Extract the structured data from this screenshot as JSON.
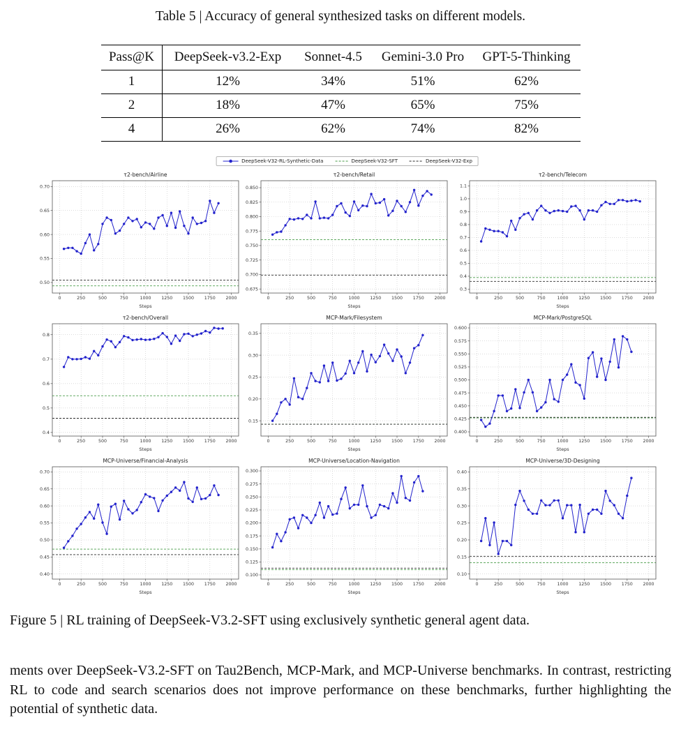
{
  "table": {
    "title": "Table 5 | Accuracy of general synthesized tasks on different models.",
    "headers": [
      "Pass@K",
      "DeepSeek-v3.2-Exp",
      "Sonnet-4.5",
      "Gemini-3.0 Pro",
      "GPT-5-Thinking"
    ],
    "rows": [
      [
        "1",
        "12%",
        "34%",
        "51%",
        "62%"
      ],
      [
        "2",
        "18%",
        "47%",
        "65%",
        "75%"
      ],
      [
        "4",
        "26%",
        "62%",
        "74%",
        "82%"
      ]
    ]
  },
  "figure": {
    "legend": [
      {
        "label": "DeepSeek-V32-RL-Synthetic-Data",
        "color": "#2222cc",
        "style": "line-marker"
      },
      {
        "label": "DeepSeek-V32-SFT",
        "color": "#4a9e4a",
        "style": "dashed"
      },
      {
        "label": "DeepSeek-V32-Exp",
        "color": "#2b2b2b",
        "style": "dashed"
      }
    ],
    "caption": "Figure 5 | RL training of DeepSeek-V3.2-SFT using exclusively synthetic general agent data."
  },
  "body_text": "ments over DeepSeek-V3.2-SFT on Tau2Bench, MCP-Mark, and MCP-Universe benchmarks. In contrast, restricting RL to code and search scenarios does not improve performance on these benchmarks, further highlighting the potential of synthetic data.",
  "chart_data": [
    {
      "type": "line",
      "title": "τ2-bench/Airline",
      "xlabel": "Steps",
      "xticks": [
        0,
        250,
        500,
        750,
        1000,
        1250,
        1500,
        1750,
        2000
      ],
      "xlim": [
        -85,
        2085
      ],
      "ylim": [
        0.478,
        0.712
      ],
      "ytick_vals": [
        0.5,
        0.55,
        0.6,
        0.65,
        0.7
      ],
      "ytick_labels": [
        "0.50",
        "0.55",
        "0.60",
        "0.65",
        "0.70"
      ],
      "series_name": "DeepSeek-V32-RL-Synthetic-Data",
      "x_start": 50,
      "x_step": 50,
      "values": [
        0.57,
        0.572,
        0.572,
        0.565,
        0.56,
        0.582,
        0.6,
        0.567,
        0.58,
        0.622,
        0.635,
        0.63,
        0.602,
        0.608,
        0.622,
        0.635,
        0.628,
        0.632,
        0.615,
        0.625,
        0.622,
        0.612,
        0.635,
        0.64,
        0.618,
        0.645,
        0.614,
        0.648,
        0.618,
        0.602,
        0.635,
        0.622,
        0.624,
        0.628,
        0.67,
        0.645,
        0.665
      ],
      "baselines": {
        "sft": 0.493,
        "exp": 0.505
      }
    },
    {
      "type": "line",
      "title": "τ2-bench/Retail",
      "xlabel": "Steps",
      "xticks": [
        0,
        250,
        500,
        750,
        1000,
        1250,
        1500,
        1750,
        2000
      ],
      "xlim": [
        -85,
        2085
      ],
      "ylim": [
        0.668,
        0.862
      ],
      "ytick_vals": [
        0.675,
        0.7,
        0.725,
        0.75,
        0.775,
        0.8,
        0.825,
        0.85
      ],
      "ytick_labels": [
        "0.675",
        "0.700",
        "0.725",
        "0.750",
        "0.775",
        "0.800",
        "0.825",
        "0.850"
      ],
      "series_name": "DeepSeek-V32-RL-Synthetic-Data",
      "x_start": 50,
      "x_step": 50,
      "values": [
        0.769,
        0.773,
        0.774,
        0.785,
        0.796,
        0.795,
        0.797,
        0.796,
        0.803,
        0.797,
        0.826,
        0.797,
        0.798,
        0.797,
        0.803,
        0.818,
        0.823,
        0.807,
        0.801,
        0.826,
        0.811,
        0.819,
        0.818,
        0.839,
        0.823,
        0.824,
        0.83,
        0.802,
        0.81,
        0.827,
        0.818,
        0.808,
        0.825,
        0.846,
        0.819,
        0.836,
        0.844,
        0.838
      ],
      "baselines": {
        "sft": 0.76,
        "exp": 0.699
      }
    },
    {
      "type": "line",
      "title": "τ2-bench/Telecom",
      "xlabel": "Steps",
      "xticks": [
        0,
        250,
        500,
        750,
        1000,
        1250,
        1500,
        1750,
        2000
      ],
      "xlim": [
        -85,
        2085
      ],
      "ylim": [
        0.27,
        1.14
      ],
      "ytick_vals": [
        0.3,
        0.4,
        0.5,
        0.6,
        0.7,
        0.8,
        0.9,
        1.0,
        1.1
      ],
      "ytick_labels": [
        "0.3",
        "0.4",
        "0.5",
        "0.6",
        "0.7",
        "0.8",
        "0.9",
        "1.0",
        "1.1"
      ],
      "series_name": "DeepSeek-V32-RL-Synthetic-Data",
      "x_start": 50,
      "x_step": 50,
      "values": [
        0.67,
        0.77,
        0.76,
        0.75,
        0.75,
        0.74,
        0.71,
        0.83,
        0.76,
        0.85,
        0.88,
        0.89,
        0.84,
        0.91,
        0.945,
        0.91,
        0.89,
        0.905,
        0.91,
        0.905,
        0.9,
        0.94,
        0.945,
        0.91,
        0.84,
        0.91,
        0.91,
        0.9,
        0.95,
        0.975,
        0.96,
        0.96,
        0.99,
        0.99,
        0.98,
        0.985,
        0.99,
        0.98
      ],
      "baselines": {
        "sft": 0.39,
        "exp": 0.36
      }
    },
    {
      "type": "line",
      "title": "τ2-bench/Overall",
      "xlabel": "Steps",
      "xticks": [
        0,
        250,
        500,
        750,
        1000,
        1250,
        1500,
        1750,
        2000
      ],
      "xlim": [
        -85,
        2085
      ],
      "ylim": [
        0.385,
        0.845
      ],
      "ytick_vals": [
        0.4,
        0.5,
        0.6,
        0.7,
        0.8
      ],
      "ytick_labels": [
        "0.4",
        "0.5",
        "0.6",
        "0.7",
        "0.8"
      ],
      "series_name": "DeepSeek-V32-RL-Synthetic-Data",
      "x_start": 50,
      "x_step": 50,
      "values": [
        0.668,
        0.708,
        0.7,
        0.7,
        0.701,
        0.708,
        0.702,
        0.733,
        0.716,
        0.752,
        0.78,
        0.773,
        0.749,
        0.77,
        0.794,
        0.789,
        0.778,
        0.78,
        0.782,
        0.779,
        0.78,
        0.783,
        0.79,
        0.806,
        0.791,
        0.763,
        0.796,
        0.775,
        0.802,
        0.804,
        0.794,
        0.8,
        0.805,
        0.815,
        0.809,
        0.828,
        0.825,
        0.826
      ],
      "baselines": {
        "sft": 0.55,
        "exp": 0.458
      }
    },
    {
      "type": "line",
      "title": "MCP-Mark/Filesystem",
      "xlabel": "Steps",
      "xticks": [
        0,
        250,
        500,
        750,
        1000,
        1250,
        1500,
        1750,
        2000
      ],
      "xlim": [
        -85,
        2085
      ],
      "ylim": [
        0.115,
        0.372
      ],
      "ytick_vals": [
        0.15,
        0.2,
        0.25,
        0.3,
        0.35
      ],
      "ytick_labels": [
        "0.15",
        "0.20",
        "0.25",
        "0.30",
        "0.35"
      ],
      "series_name": "DeepSeek-V32-RL-Synthetic-Data",
      "x_start": 50,
      "x_step": 50,
      "values": [
        0.15,
        0.166,
        0.192,
        0.2,
        0.187,
        0.247,
        0.204,
        0.2,
        0.225,
        0.259,
        0.241,
        0.238,
        0.276,
        0.241,
        0.283,
        0.242,
        0.246,
        0.258,
        0.287,
        0.259,
        0.283,
        0.309,
        0.263,
        0.301,
        0.284,
        0.298,
        0.324,
        0.304,
        0.287,
        0.313,
        0.297,
        0.259,
        0.283,
        0.316,
        0.323,
        0.346
      ],
      "baselines": {
        "sft": 0.142,
        "exp": 0.142
      }
    },
    {
      "type": "line",
      "title": "MCP-Mark/PostgreSQL",
      "xlabel": "Steps",
      "xticks": [
        0,
        250,
        500,
        750,
        1000,
        1250,
        1500,
        1750,
        2000
      ],
      "xlim": [
        -85,
        2085
      ],
      "ylim": [
        0.392,
        0.608
      ],
      "ytick_vals": [
        0.4,
        0.425,
        0.45,
        0.475,
        0.5,
        0.525,
        0.55,
        0.575,
        0.6
      ],
      "ytick_labels": [
        "0.400",
        "0.425",
        "0.450",
        "0.475",
        "0.500",
        "0.525",
        "0.550",
        "0.575",
        "0.600"
      ],
      "series_name": "DeepSeek-V32-RL-Synthetic-Data",
      "x_start": 50,
      "x_step": 50,
      "values": [
        0.423,
        0.41,
        0.416,
        0.44,
        0.47,
        0.47,
        0.44,
        0.445,
        0.482,
        0.446,
        0.476,
        0.5,
        0.476,
        0.44,
        0.447,
        0.457,
        0.5,
        0.463,
        0.458,
        0.5,
        0.51,
        0.53,
        0.495,
        0.49,
        0.464,
        0.542,
        0.553,
        0.506,
        0.541,
        0.5,
        0.535,
        0.578,
        0.524,
        0.584,
        0.578,
        0.554
      ],
      "baselines": {
        "sft": 0.427,
        "exp": 0.428
      }
    },
    {
      "type": "line",
      "title": "MCP-Universe/Financial-Analysis",
      "xlabel": "Steps",
      "xticks": [
        0,
        250,
        500,
        750,
        1000,
        1250,
        1500,
        1750,
        2000
      ],
      "xlim": [
        -85,
        2085
      ],
      "ylim": [
        0.385,
        0.715
      ],
      "ytick_vals": [
        0.4,
        0.45,
        0.5,
        0.55,
        0.6,
        0.65,
        0.7
      ],
      "ytick_labels": [
        "0.40",
        "0.45",
        "0.50",
        "0.55",
        "0.60",
        "0.65",
        "0.70"
      ],
      "series_name": "DeepSeek-V32-RL-Synthetic-Data",
      "x_start": 50,
      "x_step": 50,
      "values": [
        0.477,
        0.496,
        0.512,
        0.533,
        0.547,
        0.566,
        0.582,
        0.563,
        0.604,
        0.551,
        0.518,
        0.598,
        0.606,
        0.56,
        0.615,
        0.59,
        0.578,
        0.588,
        0.611,
        0.634,
        0.627,
        0.623,
        0.585,
        0.616,
        0.63,
        0.641,
        0.654,
        0.645,
        0.67,
        0.622,
        0.612,
        0.654,
        0.62,
        0.622,
        0.632,
        0.66,
        0.632
      ],
      "baselines": {
        "sft": 0.473,
        "exp": 0.457
      }
    },
    {
      "type": "line",
      "title": "MCP-Universe/Location-Navigation",
      "xlabel": "Steps",
      "xticks": [
        0,
        250,
        500,
        750,
        1000,
        1250,
        1500,
        1750,
        2000
      ],
      "xlim": [
        -85,
        2085
      ],
      "ylim": [
        0.092,
        0.308
      ],
      "ytick_vals": [
        0.1,
        0.125,
        0.15,
        0.175,
        0.2,
        0.225,
        0.25,
        0.275,
        0.3
      ],
      "ytick_labels": [
        "0.100",
        "0.125",
        "0.150",
        "0.175",
        "0.200",
        "0.225",
        "0.250",
        "0.275",
        "0.300"
      ],
      "series_name": "DeepSeek-V32-RL-Synthetic-Data",
      "x_start": 50,
      "x_step": 50,
      "values": [
        0.153,
        0.179,
        0.165,
        0.182,
        0.207,
        0.21,
        0.19,
        0.215,
        0.21,
        0.2,
        0.215,
        0.239,
        0.21,
        0.232,
        0.216,
        0.218,
        0.246,
        0.268,
        0.228,
        0.235,
        0.235,
        0.272,
        0.232,
        0.21,
        0.215,
        0.235,
        0.232,
        0.228,
        0.257,
        0.239,
        0.29,
        0.248,
        0.243,
        0.278,
        0.29,
        0.261
      ],
      "baselines": {
        "sft": 0.11,
        "exp": 0.113
      }
    },
    {
      "type": "line",
      "title": "MCP-Universe/3D-Designing",
      "xlabel": "Steps",
      "xticks": [
        0,
        250,
        500,
        750,
        1000,
        1250,
        1500,
        1750,
        2000
      ],
      "xlim": [
        -85,
        2085
      ],
      "ylim": [
        0.085,
        0.415
      ],
      "ytick_vals": [
        0.1,
        0.15,
        0.2,
        0.25,
        0.3,
        0.35,
        0.4
      ],
      "ytick_labels": [
        "0.10",
        "0.15",
        "0.20",
        "0.25",
        "0.30",
        "0.35",
        "0.40"
      ],
      "series_name": "DeepSeek-V32-RL-Synthetic-Data",
      "x_start": 50,
      "x_step": 50,
      "values": [
        0.197,
        0.264,
        0.185,
        0.251,
        0.159,
        0.197,
        0.197,
        0.185,
        0.303,
        0.344,
        0.315,
        0.289,
        0.277,
        0.277,
        0.316,
        0.302,
        0.302,
        0.316,
        0.316,
        0.264,
        0.302,
        0.302,
        0.223,
        0.303,
        0.223,
        0.277,
        0.289,
        0.289,
        0.277,
        0.344,
        0.315,
        0.302,
        0.277,
        0.264,
        0.33,
        0.382
      ],
      "baselines": {
        "sft": 0.133,
        "exp": 0.152
      }
    }
  ]
}
